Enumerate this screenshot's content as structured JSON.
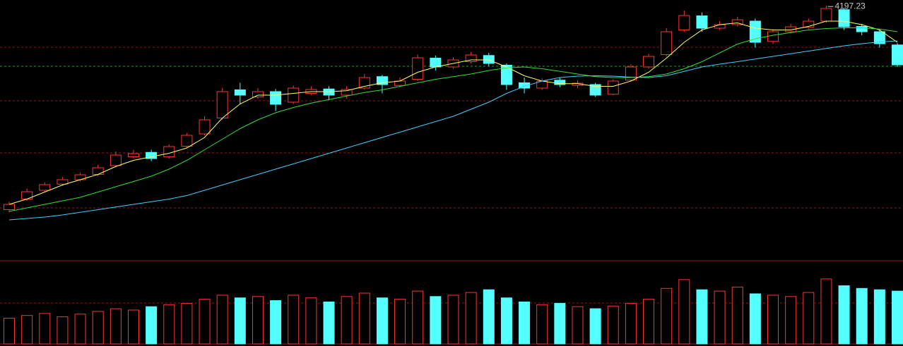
{
  "chart_data": {
    "type": "candlestick",
    "open": [
      3040,
      3100,
      3150,
      3185,
      3210,
      3240,
      3290,
      3340,
      3365,
      3340,
      3400,
      3470,
      3560,
      3720,
      3680,
      3710,
      3650,
      3700,
      3725,
      3690,
      3730,
      3795,
      3745,
      3780,
      3900,
      3850,
      3880,
      3915,
      3860,
      3760,
      3730,
      3775,
      3745,
      3750,
      3695,
      3775,
      3850,
      3920,
      4060,
      4140,
      4070,
      4090,
      4110,
      3995,
      4050,
      4075,
      4110,
      4175,
      4080,
      4050,
      3975
    ],
    "high": [
      3085,
      3160,
      3195,
      3225,
      3250,
      3295,
      3370,
      3380,
      3380,
      3410,
      3475,
      3570,
      3730,
      3760,
      3730,
      3725,
      3745,
      3740,
      3740,
      3740,
      3810,
      3805,
      3790,
      3920,
      3915,
      3905,
      3935,
      3930,
      3870,
      3790,
      3785,
      3790,
      3775,
      3760,
      3780,
      3865,
      3925,
      4070,
      4170,
      4160,
      4110,
      4135,
      4125,
      4065,
      4095,
      4125,
      4197.23,
      4185,
      4095,
      4060,
      3985
    ],
    "low": [
      3025,
      3090,
      3140,
      3175,
      3200,
      3230,
      3280,
      3330,
      3315,
      3330,
      3390,
      3460,
      3550,
      3640,
      3670,
      3600,
      3640,
      3690,
      3660,
      3670,
      3720,
      3700,
      3735,
      3770,
      3830,
      3840,
      3870,
      3855,
      3720,
      3700,
      3720,
      3735,
      3730,
      3680,
      3690,
      3770,
      3840,
      3910,
      4050,
      4050,
      4060,
      4080,
      3960,
      3980,
      4040,
      4065,
      4100,
      4060,
      4030,
      3960,
      3850
    ],
    "close": [
      3070,
      3142,
      3182,
      3210,
      3238,
      3278,
      3350,
      3358,
      3330,
      3398,
      3462,
      3550,
      3710,
      3690,
      3710,
      3638,
      3730,
      3722,
      3690,
      3722,
      3790,
      3750,
      3770,
      3902,
      3850,
      3890,
      3918,
      3870,
      3750,
      3730,
      3770,
      3750,
      3758,
      3690,
      3770,
      3850,
      3910,
      4050,
      4142,
      4070,
      4090,
      4118,
      3990,
      4050,
      4078,
      4110,
      4182,
      4078,
      4050,
      3982,
      3862
    ],
    "volume": [
      38,
      42,
      45,
      40,
      44,
      48,
      52,
      50,
      55,
      58,
      60,
      66,
      72,
      68,
      70,
      64,
      72,
      68,
      62,
      70,
      75,
      68,
      66,
      78,
      70,
      72,
      76,
      80,
      68,
      62,
      58,
      60,
      55,
      52,
      56,
      60,
      66,
      82,
      95,
      80,
      78,
      84,
      74,
      72,
      70,
      76,
      96,
      86,
      82,
      80,
      78
    ],
    "series": [
      {
        "color": "#ffff66",
        "values": [
          3070,
          3100,
          3140,
          3180,
          3210,
          3240,
          3285,
          3320,
          3340,
          3360,
          3390,
          3450,
          3560,
          3640,
          3690,
          3690,
          3700,
          3710,
          3710,
          3715,
          3740,
          3760,
          3770,
          3820,
          3850,
          3870,
          3890,
          3890,
          3850,
          3800,
          3770,
          3755,
          3755,
          3740,
          3740,
          3770,
          3820,
          3900,
          3990,
          4060,
          4090,
          4100,
          4070,
          4060,
          4060,
          4080,
          4110,
          4110,
          4090,
          4060,
          3990
        ]
      },
      {
        "color": "#33dd33",
        "values": [
          3030,
          3050,
          3070,
          3090,
          3110,
          3140,
          3170,
          3200,
          3230,
          3270,
          3320,
          3380,
          3440,
          3500,
          3550,
          3590,
          3620,
          3645,
          3665,
          3685,
          3705,
          3720,
          3740,
          3760,
          3780,
          3795,
          3810,
          3830,
          3845,
          3850,
          3840,
          3825,
          3810,
          3795,
          3790,
          3790,
          3795,
          3810,
          3840,
          3880,
          3930,
          3980,
          4010,
          4030,
          4045,
          4060,
          4068,
          4072,
          4072,
          4065,
          4050
        ]
      },
      {
        "color": "#44ccff",
        "values": [
          2982,
          2990,
          2998,
          3010,
          3025,
          3040,
          3055,
          3070,
          3085,
          3100,
          3120,
          3150,
          3180,
          3210,
          3240,
          3270,
          3300,
          3330,
          3360,
          3390,
          3420,
          3450,
          3480,
          3510,
          3540,
          3570,
          3610,
          3650,
          3700,
          3740,
          3770,
          3790,
          3798,
          3800,
          3798,
          3792,
          3790,
          3800,
          3825,
          3850,
          3866,
          3880,
          3895,
          3910,
          3925,
          3940,
          3955,
          3970,
          3982,
          3992,
          3998
        ]
      }
    ],
    "up_color": "#ff3232",
    "down_color": "#54ffff",
    "ylim": [
      2750,
      4230
    ],
    "volume_ylim": [
      0,
      100
    ]
  }
}
